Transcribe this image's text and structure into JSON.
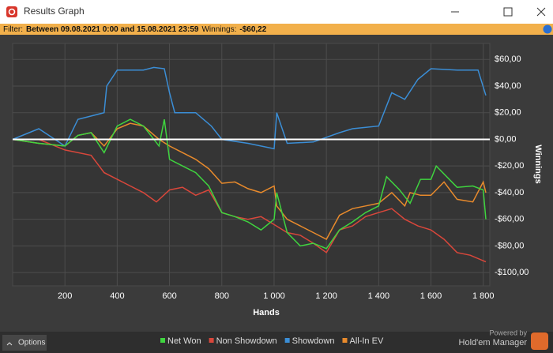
{
  "window": {
    "title": "Results Graph"
  },
  "filter": {
    "label": "Filter:",
    "range": "Between 09.08.2021 0:00 and 15.08.2021 23:59",
    "winnings_label": "Winnings:",
    "winnings": "-$60,22"
  },
  "footer": {
    "options": "Options",
    "powered_by": "Powered by",
    "brand": "Hold'em Manager"
  },
  "chart_data": {
    "type": "line",
    "x_label": "Hands",
    "y_label": "Winnings",
    "xlim": [
      0,
      1825
    ],
    "ylim": [
      -110,
      72
    ],
    "xticks": [
      200,
      400,
      600,
      800,
      {
        "value": 1000,
        "label": "1 000"
      },
      {
        "value": 1200,
        "label": "1 200"
      },
      {
        "value": 1400,
        "label": "1 400"
      },
      {
        "value": 1600,
        "label": "1 600"
      },
      {
        "value": 1800,
        "label": "1 800"
      }
    ],
    "yticks": [
      {
        "value": 60,
        "label": "$60,00"
      },
      {
        "value": 40,
        "label": "$40,00"
      },
      {
        "value": 20,
        "label": "$20,00"
      },
      {
        "value": 0,
        "label": "$0,00"
      },
      {
        "value": -20,
        "label": "-$20,00"
      },
      {
        "value": -40,
        "label": "-$40,00"
      },
      {
        "value": -60,
        "label": "-$60,00"
      },
      {
        "value": -80,
        "label": "-$80,00"
      },
      {
        "value": -100,
        "label": "-$100,00"
      }
    ],
    "grid": true,
    "series": [
      {
        "name": "Net Won",
        "color": "#3fd43f",
        "x": [
          0,
          100,
          200,
          250,
          300,
          350,
          400,
          450,
          500,
          560,
          580,
          600,
          650,
          700,
          750,
          800,
          850,
          900,
          950,
          1000,
          1010,
          1050,
          1100,
          1150,
          1200,
          1250,
          1300,
          1350,
          1400,
          1430,
          1480,
          1520,
          1560,
          1600,
          1620,
          1700,
          1760,
          1800,
          1810
        ],
        "values": [
          0,
          -3,
          -5,
          3,
          5,
          -10,
          10,
          15,
          10,
          -5,
          15,
          -15,
          -20,
          -25,
          -35,
          -55,
          -58,
          -62,
          -68,
          -60,
          -40,
          -70,
          -80,
          -78,
          -82,
          -68,
          -62,
          -55,
          -50,
          -28,
          -38,
          -48,
          -30,
          -30,
          -20,
          -36,
          -35,
          -38,
          -60
        ]
      },
      {
        "name": "Non Showdown",
        "color": "#d9473b",
        "x": [
          0,
          100,
          200,
          300,
          350,
          400,
          450,
          500,
          550,
          600,
          650,
          700,
          750,
          800,
          850,
          900,
          950,
          1000,
          1050,
          1100,
          1150,
          1200,
          1250,
          1300,
          1350,
          1400,
          1450,
          1500,
          1550,
          1600,
          1650,
          1700,
          1750,
          1810
        ],
        "values": [
          0,
          0,
          -8,
          -12,
          -25,
          -30,
          -35,
          -40,
          -47,
          -38,
          -36,
          -42,
          -38,
          -55,
          -58,
          -60,
          -58,
          -64,
          -70,
          -72,
          -78,
          -85,
          -68,
          -65,
          -58,
          -55,
          -52,
          -60,
          -65,
          -68,
          -75,
          -85,
          -87,
          -92
        ]
      },
      {
        "name": "Showdown",
        "color": "#3b8ed6",
        "x": [
          0,
          100,
          200,
          250,
          350,
          360,
          400,
          500,
          540,
          580,
          600,
          620,
          700,
          760,
          800,
          900,
          1000,
          1010,
          1050,
          1150,
          1250,
          1300,
          1400,
          1450,
          1500,
          1550,
          1600,
          1700,
          1780,
          1810
        ],
        "values": [
          0,
          8,
          -5,
          15,
          20,
          40,
          52,
          52,
          54,
          53,
          35,
          20,
          20,
          10,
          0,
          -3,
          -7,
          20,
          -3,
          -2,
          5,
          8,
          10,
          35,
          30,
          45,
          53,
          52,
          52,
          33
        ]
      },
      {
        "name": "All-In EV",
        "color": "#e88a2c",
        "x": [
          0,
          100,
          200,
          250,
          300,
          350,
          400,
          450,
          500,
          560,
          600,
          650,
          700,
          750,
          800,
          850,
          900,
          950,
          1000,
          1010,
          1050,
          1100,
          1150,
          1200,
          1250,
          1300,
          1350,
          1400,
          1450,
          1500,
          1520,
          1560,
          1600,
          1650,
          1700,
          1760,
          1800,
          1810
        ],
        "values": [
          0,
          -3,
          -5,
          3,
          5,
          -5,
          8,
          12,
          10,
          0,
          -5,
          -10,
          -15,
          -22,
          -33,
          -32,
          -37,
          -40,
          -35,
          -50,
          -60,
          -65,
          -70,
          -75,
          -57,
          -52,
          -50,
          -48,
          -40,
          -50,
          -40,
          -42,
          -42,
          -32,
          -45,
          -47,
          -32,
          -40
        ]
      }
    ]
  }
}
